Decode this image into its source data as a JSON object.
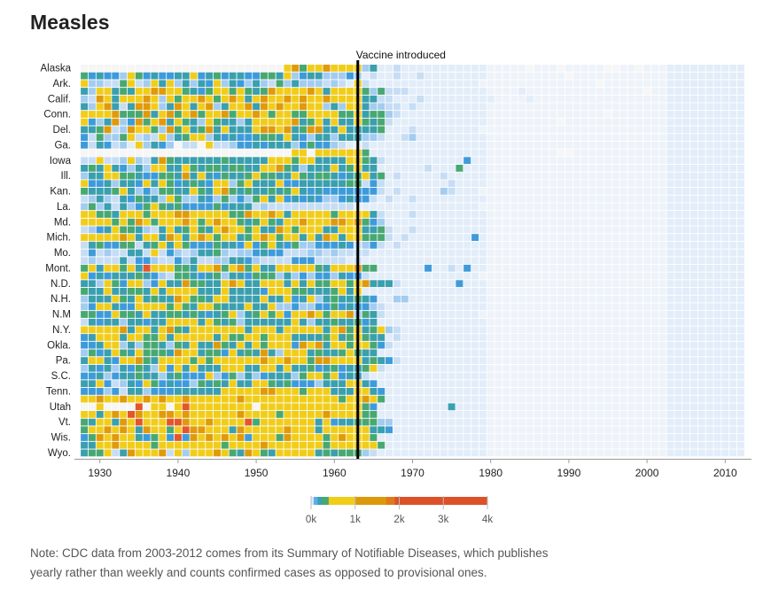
{
  "title": "Measles",
  "note": "Note: CDC data from 2003-2012 comes from its Summary of Notifiable Diseases, which publishes yearly rather than weekly and counts confirmed cases as opposed to provisional ones.",
  "chart_data": {
    "type": "heatmap",
    "title": "Measles",
    "x_range": [
      1928,
      2012
    ],
    "x_ticks": [
      "1930",
      "1940",
      "1950",
      "1960",
      "1970",
      "1980",
      "1990",
      "2000",
      "2010"
    ],
    "annotation": {
      "year": 1963,
      "label": "Vaccine introduced"
    },
    "cell_encoding": "each character of a row is one year (1928-2012, spaces separate 5-year groups); code maps to level_values",
    "level_values": {
      ".": null,
      "0": 0,
      "1": 5,
      "2": 20,
      "3": 50,
      "4": 150,
      "5": 250,
      "6": 350,
      "7": 700,
      "8": 1300,
      "9": 2500
    },
    "level_colors": {
      ".": "#f6f6f6",
      "0": "#eef3fa",
      "1": "#e2edf9",
      "2": "#c6ddf4",
      "3": "#a3ccf0",
      "4": "#3d9bdb",
      "5": "#3a9fae",
      "6": "#48a872",
      "7": "#f1cd1b",
      "8": "#e09a0a",
      "9": "#e4552b"
    },
    "legend": {
      "ticks": [
        "0k",
        "1k",
        "2k",
        "3k",
        "4k"
      ],
      "range": [
        0,
        4000
      ],
      "stops": [
        {
          "from": 0,
          "to": 60,
          "color": "#d7e7f7"
        },
        {
          "from": 60,
          "to": 150,
          "color": "#5aaee8"
        },
        {
          "from": 150,
          "to": 250,
          "color": "#3a9fae"
        },
        {
          "from": 250,
          "to": 400,
          "color": "#48a872"
        },
        {
          "from": 400,
          "to": 1000,
          "color": "#f1cd1b"
        },
        {
          "from": 1000,
          "to": 1700,
          "color": "#dc9a0a"
        },
        {
          "from": 1700,
          "to": 1900,
          "color": "#e07a18"
        },
        {
          "from": 1900,
          "to": 4000,
          "color": "#dd5128"
        }
      ]
    },
    "rows": [
      {
        "label": "Alaska",
        "cells": "..... ..... ..... ..... ..... .7867 78777 73511 21111 11111 11000 00.00 0.000 00..0 0.000 11111 11111"
      },
      {
        "label": "",
        "cells": "64544 37645 44557 45645 54466 57345 53334 31211 21121 11111 11000 00000 00.00 00000 00000 11111 11111"
      },
      {
        "label": "Ark.",
        "cells": "73322 67237 57353 54735 43532 63533 32321 72111 11111 11111 10000 00000 00000 0.000 00000 11111 11111"
      },
      {
        "label": "",
        "cells": "53775 65778 87765 46776 76568 77778 75777 76362 22111 11111 11000 01000 00000 00000 00.00 11111 11111"
      },
      {
        "label": "Calif.",
        "cells": "32875 77787 37677 87678 75787 78787 78777 75522 11121 11111 11100 00100 00000 00000 00000 11111 11111"
      },
      {
        "label": "",
        "cells": "53785 25887 35875 78357 78587 87787 73537 75332 21211 11111 11000 00000 00000 00000 00000 11111 11111"
      },
      {
        "label": "Conn.",
        "cells": "77778 66685 78678 67786 77876 77667 77766 75663 21111 11111 11000 00000 00000 00.00 00000 11111 11111"
      },
      {
        "label": "",
        "cells": "74358 34867 85765 37655 35777 77856 75755 76562 11111 11111 11000 00000 0.000 00000 00000 11111 11111"
      },
      {
        "label": "Del.",
        "cells": "55682 38776 38675 68575 55788 78568 85575 55561 11211 11111 10000 00000 00000 00000 00000 11111 11111"
      },
      {
        "label": "",
        "cells": "42633 67232 73567 73545 44566 57543 55355 53321 12311 11111 11000 00000 00000 00000 00000 11111 11111"
      },
      {
        "label": "Ga.",
        "cells": "42542 31735 43.22 .7223 44545 55346 44321 12111 11111 11111 11000 00000 00000 00000 00000 11111 11111"
      },
      {
        "label": "",
        "cells": "..... ..... ..... ..... ..... ..77. 77777 76111 11111 11111 11000 00000 0..00 00000 00000 11111 11111"
      },
      {
        "label": "Iowa",
        "cells": "22722 37325 86555 55565 55557 77677 55557 76521 11111 11114 11000 00000 00000 00000 00000 11111 11111"
      },
      {
        "label": "",
        "cells": "56575 43537 75576 56656 65577 86535 55756 75511 11112 11161 11000 00000 00000 00000 00000 11111 11111"
      },
      {
        "label": "Ill.",
        "cells": "35577 66544 66585 75465 56766 55765 66545 67561 21111 12111 11000 00000 00000 00000 00000 11111 11111"
      },
      {
        "label": "",
        "cells": "74453 55475 76456 54773 67555 74455 55556 62421 11111 11211 11000 00000 00000 00000 00000 11111 11111"
      },
      {
        "label": "Kan.",
        "cells": "65556 75343 66557 65786 56556 56754 54444 44421 21111 13211 10000 00000 00000 00000 00000 11111 11111"
      },
      {
        "label": "",
        "cells": "23532 54655 37633 54363 43675 74545 43345 44212 11211 11111 11000 00000 00000 00000 00000 11111 11111"
      },
      {
        "label": "La.",
        "cells": "36352 53467 65644 44645 55232 22222 22222 11111 11111 11111 10000 00000 00000 00000 00000 11111 11111"
      },
      {
        "label": "",
        "cells": "77665 77767 77887 77776 68778 75777 77677 77521 11211 11111 11000 00000 00000 00000 00000 11111 11111"
      },
      {
        "label": "Md.",
        "cells": "77776 76876 77787 67877 65676 57787 77887 86431 11111 11111 11000 00000 00000 00000 00000 11111 11111"
      },
      {
        "label": "",
        "cells": "23457 66532 57567 65787 76755 87677 75577 75562 11211 11111 11000 00000 00000 00000 00000 11111 11111"
      },
      {
        "label": "Mich.",
        "cells": "77777 87577 58757 87677 56787 67757 58757 76662 12111 11111 41000 00000 00000 00000 00000 11111 11111"
      },
      {
        "label": "",
        "cells": "25644 66256 75764 44655 47467 54633 44454 23421 21111 11111 11000 00000 00000 00000 00000 11111 11111"
      },
      {
        "label": "Mo.",
        "cells": "24232 25527 24323 55632 33454 42223 32322 22111 11111 11111 11000 00000 00000 00000 00000 11111 11111"
      },
      {
        "label": "",
        "cells": "23222 52443 22435 22335 54322 22444 22221 21111 11111 11111 11000 00000 00000 00000 00000 11111 11111"
      },
      {
        "label": "Mont.",
        "cells": "67577 67597 77665 77867 86755 77777 65777 86611 11114 11214 11000 00000 00000 00000 00000 11111 11111"
      },
      {
        "label": "",
        "cells": "74545 55654 32665 45635 54666 35343 44354 42111 11111 11111 10000 00000 00000 00000 00000 11111 11111"
      },
      {
        "label": "N.D.",
        "cells": "55376 47734 75586 65578 75577 75757 66776 78555 21111 11141 11000 00000 00000 00000 00000 11111 11111"
      },
      {
        "label": "",
        "cells": "65575 56657 57777 55575 55547 77665 55675 71111 11111 11111 11000 00000 00000 00000 00000 11111 11111"
      },
      {
        "label": "N.H.",
        "cells": "35557 65756 55876 65775 55575 57457 35655 65411 33111 11111 11000 00000 00000 00000 00000 11111 11111"
      },
      {
        "label": "",
        "cells": "34775 44777 76765 77655 57557 33433 44645 44321 11111 11111 11000 00000 00000 00000 00000 11111 11111"
      },
      {
        "label": "N.M",
        "cells": "66447 66575 56656 54567 35676 74778 76778 36521 11111 11111 10000 00000 00000 00000 00000 11111 11111"
      },
      {
        "label": "",
        "cells": "25455 35545 57777 57656 35555 55753 55655 64511 11111 11111 11000 00000 00000 00000 00000 11111 11111"
      },
      {
        "label": "N.Y.",
        "cells": "77777 85775 78657 77777 75777 57777 75786 75673 21111 11111 11000 00000 00000 00000 00000 11111 11111"
      },
      {
        "label": "",
        "cells": "45777 57766 75777 77576 67767 77555 56756 76551 21111 11111 11000 00000 00000 00000 00000 11111 11111"
      },
      {
        "label": "Okla.",
        "cells": "44577 35366 53657 55865 75767 77487 85776 77642 11111 11111 11000 00000 00000 00000 00000 11111 11111"
      },
      {
        "label": "",
        "cells": "36457 65766 65877 56647 56585 37775 65567 65511 11111 11111 11000 00000 00000 00000 00000 11111 11111"
      },
      {
        "label": "Pa.",
        "cells": "57754 77865 77776 76777 77787 78776 88777 75654 21111 11111 11000 00000 00000 00000 00000 11111 11111"
      },
      {
        "label": "",
        "cells": "35453 54653 74757 55577 75577 57556 45645 56721 11111 11111 11000 00000 00000 00000 00000 11111 11111"
      },
      {
        "label": "S.C.",
        "cells": "44534 55655 35644 47346 35345 55367 76745 52111 11111 11111 11000 00000 00000 00000 00000 11111 11111"
      },
      {
        "label": "",
        "cells": "55742 35476 45443 65657 55776 56444 35557 75411 11111 11111 11000 00000 00000 00000 00000 11111 11111"
      },
      {
        "label": "Tenn.",
        "cells": "44434 25534 44555 55577 77788 77767 77555 77541 11111 11111 11000 00000 00000 00000 00000 11111 11111"
      },
      {
        "label": "",
        "cells": "77877 87787 87787 77777 87777 77777 77767 78761 11111 11111 11000 00000 00000 00000 00000 11111 11111"
      },
      {
        "label": "Utah",
        "cells": "..7.. ..9.7 7.797 77777 77.77 77777 77777 76411 11111 11511 11000 00000 00000 00000 00000 11111 11111"
      },
      {
        "label": "",
        "cells": "77578 79877 88787 77777 87777 67777 78777 76611 11111 11111 11000 00000 00000 00000 00000 11111 11111"
      },
      {
        "label": "Vt.",
        "cells": "65775 87977 79987 78777 79677 77777 57455 66633 11111 11111 11000 00000 00000 00000 00000 11111 11111"
      },
      {
        "label": "",
        "cells": "67787 87587 76798 87775 87777 78777 57777 77554 11111 11111 11000 00000 00000 00000 00000 11111 11111"
      },
      {
        "label": "Wis.",
        "cells": "46878 77546 74948 78787 84777 68777 76787 77611 11111 11111 11000 00000 00000 00000 00000 11111 11111"
      },
      {
        "label": "",
        "cells": "55778 77776 77777 77767 77787 77777 76777 77761 11111 11111 11000 00000 00000 00000 00000 11111 11111"
      },
      {
        "label": "Wyo.",
        "cells": "56672 58777 82737 77876 58765 77777 56566 63211 11111 11111 11000 00000 00000 00000 00000 11111 11111"
      }
    ]
  }
}
